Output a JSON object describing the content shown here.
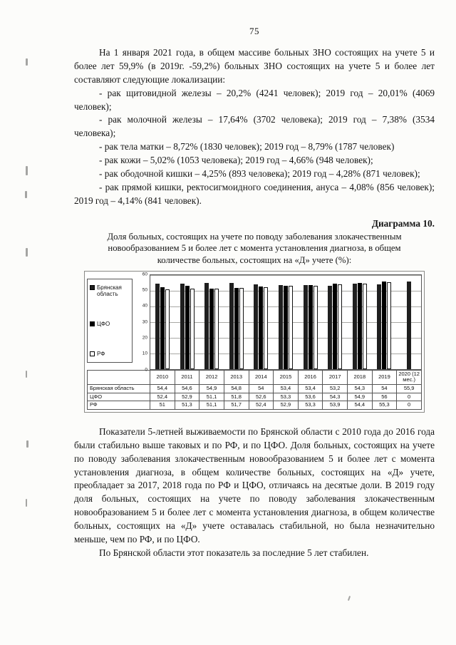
{
  "page": {
    "number": "75"
  },
  "paragraphs": {
    "intro": "На 1 января 2021 года, в общем массиве больных ЗНО состоящих на учете 5 и более лет 59,9% (в 2019г. -59,2%) больных ЗНО состоящих на учете 5 и более лет составляют следующие локализации:",
    "items": [
      "- рак щитовидной железы – 20,2% (4241 человек); 2019 год – 20,01% (4069 человек);",
      "- рак молочной железы – 17,64% (3702 человека); 2019 год – 7,38% (3534 человека);",
      "- рак тела матки – 8,72% (1830 человек);  2019 год – 8,79% (1787 человек)",
      "- рак кожи – 5,02% (1053 человека);  2019 год – 4,66% (948 человек);",
      "- рак ободочной кишки – 4,25% (893 человека);  2019 год – 4,28% (871 человек);",
      "- рак прямой кишки, ректосигмоидного соединения, ануса – 4,08% (856 человек); 2019 год – 4,14% (841 человек)."
    ],
    "discussion": "Показатели 5-летней выживаемости по Брянской области с 2010 года до 2016 года были стабильно выше таковых и по РФ, и по ЦФО. Доля больных, состоящих на учете по поводу заболевания злокачественным новообразованием 5 и более лет с момента установления диагноза, в общем количестве больных, состоящих на «Д» учете, преобладает за 2017, 2018 года по РФ и ЦФО, отличаясь на десятые доли. В 2019 году доля больных, состоящих на учете по поводу заболевания злокачественным новообразованием 5 и более лет с момента установления диагноза, в общем количестве больных, состоящих на «Д» учете оставалась стабильной, но была незначительно меньше, чем по РФ, и по ЦФО.",
    "final": "По Брянской области этот показатель за последние 5 лет стабилен."
  },
  "diagram": {
    "label": "Диаграмма 10.",
    "title": "Доля больных, состоящих на учете по поводу заболевания злокачественным новообразованием 5 и более лет с момента установления диагноза, в общем количестве больных, состоящих на «Д» учете (%):"
  },
  "chart_data": {
    "type": "bar",
    "title": "Диаграмма 10",
    "categories": [
      "2010",
      "2011",
      "2012",
      "2013",
      "2014",
      "2015",
      "2016",
      "2017",
      "2018",
      "2019",
      "2020 (12 мес.)"
    ],
    "series": [
      {
        "name": "Брянская область",
        "values": [
          54.4,
          54.6,
          54.9,
          54.8,
          54,
          53.4,
          53.4,
          53.2,
          54.3,
          54,
          55.9
        ],
        "display": [
          "54,4",
          "54,6",
          "54,9",
          "54,8",
          "54",
          "53,4",
          "53,4",
          "53,2",
          "54,3",
          "54",
          "55,9"
        ]
      },
      {
        "name": "ЦФО",
        "values": [
          52.4,
          52.9,
          51.1,
          51.8,
          52.6,
          53.3,
          53.6,
          54.3,
          54.9,
          56,
          0
        ],
        "display": [
          "52,4",
          "52,9",
          "51,1",
          "51,8",
          "52,6",
          "53,3",
          "53,6",
          "54,3",
          "54,9",
          "56",
          "0"
        ]
      },
      {
        "name": "РФ",
        "values": [
          51,
          51.3,
          51.1,
          51.7,
          52.4,
          52.9,
          53.3,
          53.9,
          54.4,
          55.3,
          0
        ],
        "display": [
          "51",
          "51,3",
          "51,1",
          "51,7",
          "52,4",
          "52,9",
          "53,3",
          "53,9",
          "54,4",
          "55,3",
          "0"
        ]
      }
    ],
    "xlabel": "",
    "ylabel": "",
    "ylim": [
      0,
      60
    ],
    "ytick_step": 10,
    "grid": true,
    "legend_position": "left"
  }
}
